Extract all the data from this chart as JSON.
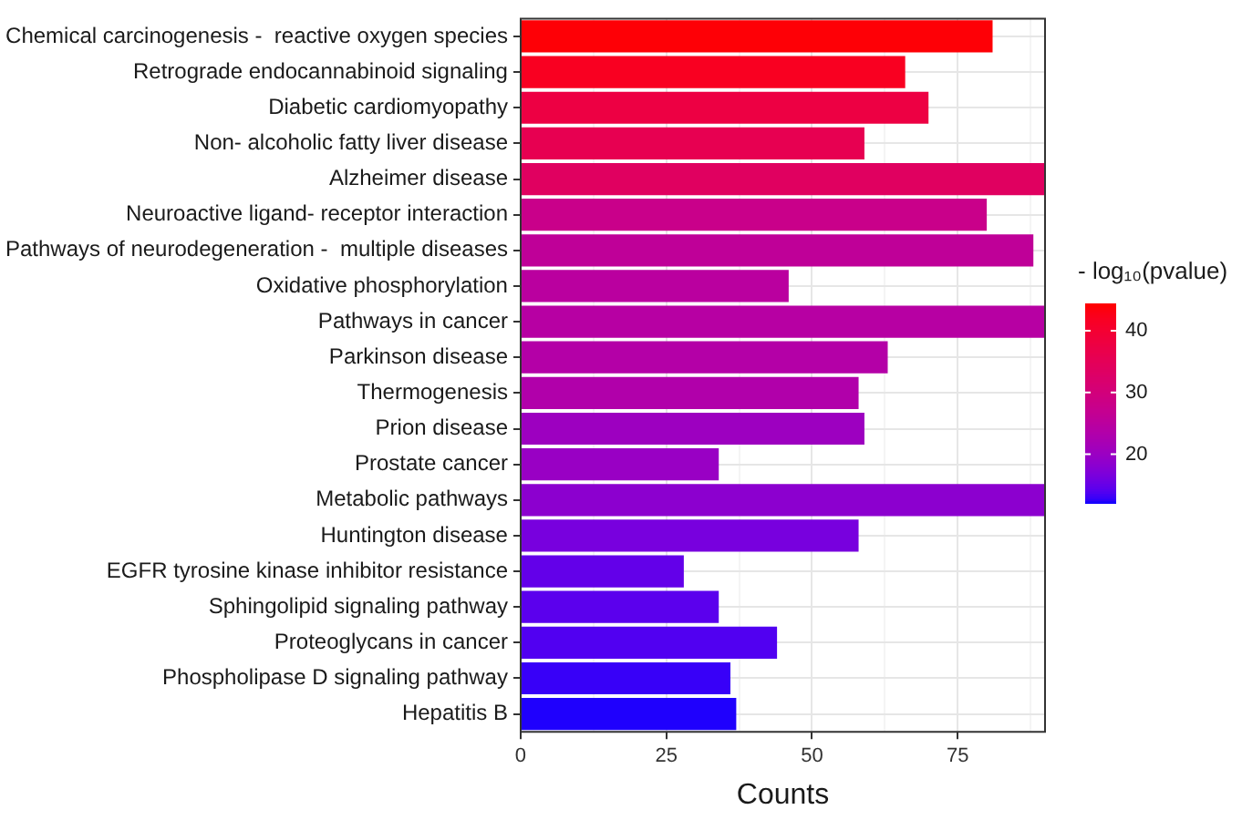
{
  "chart_data": {
    "type": "bar",
    "orientation": "horizontal",
    "xlabel": "Counts",
    "clabel": "- log₁₀(pvalue)",
    "categories": [
      "Chemical carcinogenesis -  reactive oxygen species",
      "Retrograde endocannabinoid signaling",
      "Diabetic cardiomyopathy",
      "Non- alcoholic fatty liver disease",
      "Alzheimer disease",
      "Neuroactive ligand- receptor interaction",
      "Pathways of neurodegeneration -  multiple diseases",
      "Oxidative phosphorylation",
      "Pathways in cancer",
      "Parkinson disease",
      "Thermogenesis",
      "Prion disease",
      "Prostate cancer",
      "Metabolic pathways",
      "Huntington disease",
      "EGFR tyrosine kinase inhibitor resistance",
      "Sphingolipid signaling pathway",
      "Proteoglycans in cancer",
      "Phospholipase D signaling pathway",
      "Hepatitis B"
    ],
    "values": [
      81,
      66,
      70,
      59,
      90,
      80,
      88,
      46,
      90,
      63,
      58,
      59,
      34,
      90,
      58,
      28,
      34,
      44,
      36,
      37
    ],
    "cvalues": [
      44,
      42,
      38,
      36,
      34,
      28,
      26,
      25,
      24.5,
      24,
      23.5,
      20.5,
      20,
      18.5,
      16.5,
      15,
      14.5,
      14,
      13,
      12.4
    ],
    "clim": [
      12.1,
      44.3
    ],
    "cticks": [
      20,
      30,
      40
    ],
    "xlim": [
      0,
      90
    ],
    "xticks": [
      0,
      {
        "value": 12.5,
        "label": null
      },
      25,
      {
        "value": 37.5,
        "label": null
      },
      50,
      {
        "value": 62.5,
        "label": null
      },
      75,
      {
        "value": 87.5,
        "label": null
      }
    ],
    "grid": true
  }
}
